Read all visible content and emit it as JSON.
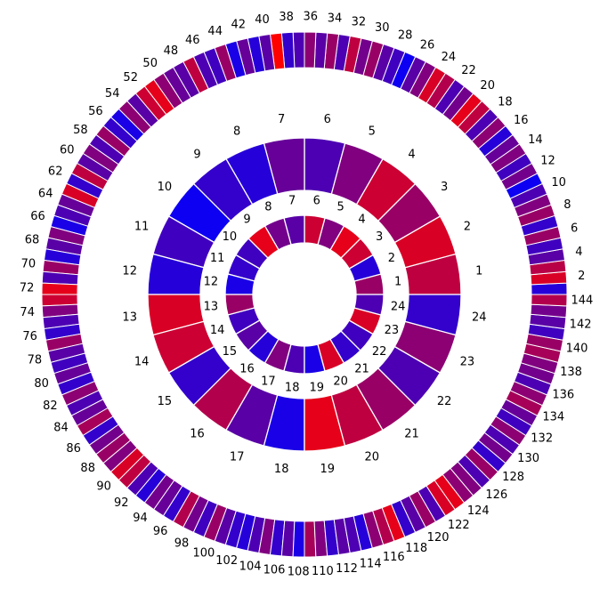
{
  "chart_data": {
    "type": "radial-heatmap",
    "title": "",
    "rings": [
      {
        "name": "",
        "label_every": 1,
        "values": [
          0.6,
          0.15,
          0.8,
          0.9,
          0.5,
          0.8,
          0.35,
          0.45,
          0.9,
          0.25,
          0.2,
          0.1,
          0.6,
          0.25,
          0.35,
          0.15,
          0.5,
          0.3,
          0.1,
          0.85,
          0.2,
          0.25,
          0.85,
          0.3
        ]
      },
      {
        "name": "",
        "label_every": 1,
        "values": [
          0.75,
          0.85,
          0.6,
          0.8,
          0.5,
          0.3,
          0.4,
          0.15,
          0.2,
          0.05,
          0.25,
          0.15,
          0.85,
          0.8,
          0.2,
          0.7,
          0.35,
          0.1,
          0.9,
          0.75,
          0.6,
          0.3,
          0.55,
          0.2
        ]
      },
      {
        "name": "",
        "label_every": 2,
        "values": [
          0.15,
          0.85,
          0.72,
          0.35,
          0.25,
          0.6,
          0.2,
          0.6,
          0.5,
          0.3,
          0.05,
          0.45,
          0.25,
          0.5,
          0.4,
          0.15,
          0.55,
          0.3,
          0.75,
          0.9,
          0.45,
          0.3,
          0.7,
          0.85,
          0.5,
          0.35,
          0.05,
          0.25,
          0.35,
          0.6,
          0.45,
          0.75,
          0.3,
          0.6,
          0.35,
          0.55,
          0.3,
          0.2,
          1.0,
          0.35,
          0.15,
          0.4,
          0.1,
          0.6,
          0.25,
          0.3,
          0.75,
          0.35,
          0.4,
          0.55,
          0.9,
          0.8,
          0.35,
          0.55,
          0.1,
          0.2,
          0.6,
          0.3,
          0.5,
          0.35,
          0.75,
          0.2,
          0.85,
          0.4,
          0.3,
          0.1,
          0.5,
          0.35,
          0.15,
          0.6,
          0.3,
          0.9,
          0.8,
          0.5,
          0.3,
          0.2,
          0.6,
          0.35,
          0.25,
          0.4,
          0.2,
          0.55,
          0.3,
          0.4,
          0.65,
          0.2,
          0.45,
          0.6,
          0.5,
          0.85,
          0.75,
          0.3,
          0.15,
          0.45,
          0.4,
          0.2,
          0.7,
          0.45,
          0.25,
          0.6,
          0.35,
          0.2,
          0.15,
          0.3,
          0.5,
          0.2,
          0.35,
          0.1,
          0.65,
          0.5,
          0.2,
          0.35,
          0.3,
          0.15,
          0.55,
          0.7,
          0.9,
          0.2,
          0.35,
          0.6,
          0.3,
          0.85,
          0.9,
          0.55,
          0.5,
          0.3,
          0.6,
          0.2,
          0.45,
          0.3,
          0.55,
          0.25,
          0.4,
          0.65,
          0.55,
          0.3,
          0.45,
          0.5,
          0.65,
          0.6,
          0.25,
          0.35,
          0.45,
          0.7
        ]
      }
    ],
    "color_scale": {
      "low": "#0000ff",
      "high": "#ff0000"
    },
    "grid": false,
    "legend": "none"
  }
}
